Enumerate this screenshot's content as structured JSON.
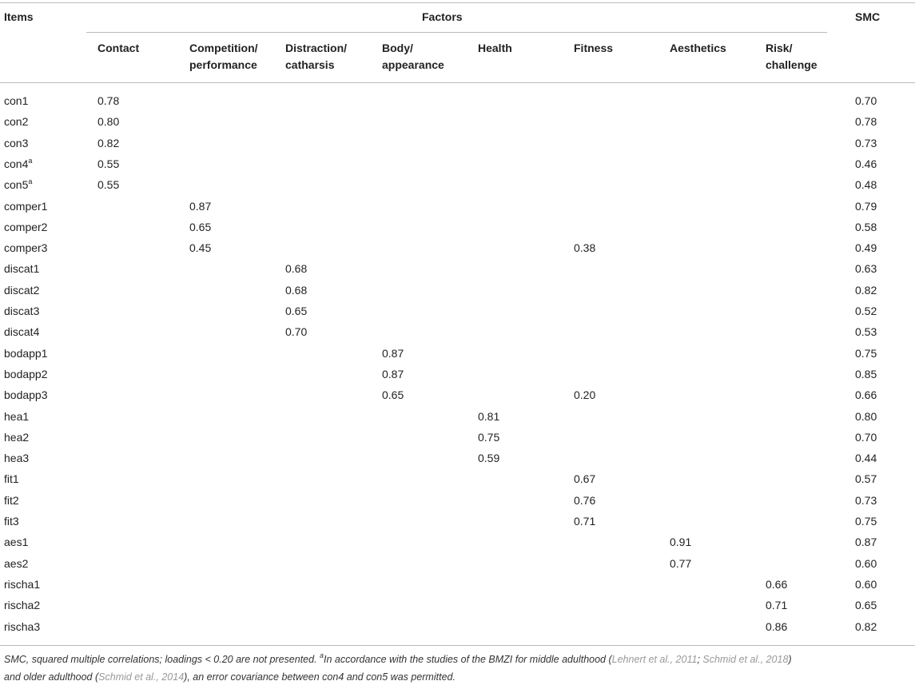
{
  "header": {
    "items": "Items",
    "factors": "Factors",
    "smc": "SMC",
    "columns": [
      [
        "Contact"
      ],
      [
        "Competition/",
        "performance"
      ],
      [
        "Distraction/",
        "catharsis"
      ],
      [
        "Body/",
        "appearance"
      ],
      [
        "Health"
      ],
      [
        "Fitness"
      ],
      [
        "Aesthetics"
      ],
      [
        "Risk/",
        "challenge"
      ]
    ]
  },
  "table": {
    "rows": [
      {
        "item": "con1",
        "cells": [
          "0.78",
          null,
          null,
          null,
          null,
          null,
          null,
          null,
          "0.70"
        ]
      },
      {
        "item": "con2",
        "cells": [
          "0.80",
          null,
          null,
          null,
          null,
          null,
          null,
          null,
          "0.78"
        ]
      },
      {
        "item": "con3",
        "cells": [
          "0.82",
          null,
          null,
          null,
          null,
          null,
          null,
          null,
          "0.73"
        ]
      },
      {
        "item": "con4",
        "sup": "a",
        "cells": [
          "0.55",
          null,
          null,
          null,
          null,
          null,
          null,
          null,
          "0.46"
        ]
      },
      {
        "item": "con5",
        "sup": "a",
        "cells": [
          "0.55",
          null,
          null,
          null,
          null,
          null,
          null,
          null,
          "0.48"
        ]
      },
      {
        "item": "comper1",
        "cells": [
          null,
          "0.87",
          null,
          null,
          null,
          null,
          null,
          null,
          "0.79"
        ]
      },
      {
        "item": "comper2",
        "cells": [
          null,
          "0.65",
          null,
          null,
          null,
          null,
          null,
          null,
          "0.58"
        ]
      },
      {
        "item": "comper3",
        "cells": [
          null,
          "0.45",
          null,
          null,
          null,
          "0.38",
          null,
          null,
          "0.49"
        ]
      },
      {
        "item": "discat1",
        "cells": [
          null,
          null,
          "0.68",
          null,
          null,
          null,
          null,
          null,
          "0.63"
        ]
      },
      {
        "item": "discat2",
        "cells": [
          null,
          null,
          "0.68",
          null,
          null,
          null,
          null,
          null,
          "0.82"
        ]
      },
      {
        "item": "discat3",
        "cells": [
          null,
          null,
          "0.65",
          null,
          null,
          null,
          null,
          null,
          "0.52"
        ]
      },
      {
        "item": "discat4",
        "cells": [
          null,
          null,
          "0.70",
          null,
          null,
          null,
          null,
          null,
          "0.53"
        ]
      },
      {
        "item": "bodapp1",
        "cells": [
          null,
          null,
          null,
          "0.87",
          null,
          null,
          null,
          null,
          "0.75"
        ]
      },
      {
        "item": "bodapp2",
        "cells": [
          null,
          null,
          null,
          "0.87",
          null,
          null,
          null,
          null,
          "0.85"
        ]
      },
      {
        "item": "bodapp3",
        "cells": [
          null,
          null,
          null,
          "0.65",
          null,
          "0.20",
          null,
          null,
          "0.66"
        ]
      },
      {
        "item": "hea1",
        "cells": [
          null,
          null,
          null,
          null,
          "0.81",
          null,
          null,
          null,
          "0.80"
        ]
      },
      {
        "item": "hea2",
        "cells": [
          null,
          null,
          null,
          null,
          "0.75",
          null,
          null,
          null,
          "0.70"
        ]
      },
      {
        "item": "hea3",
        "cells": [
          null,
          null,
          null,
          null,
          "0.59",
          null,
          null,
          null,
          "0.44"
        ]
      },
      {
        "item": "fit1",
        "cells": [
          null,
          null,
          null,
          null,
          null,
          "0.67",
          null,
          null,
          "0.57"
        ]
      },
      {
        "item": "fit2",
        "cells": [
          null,
          null,
          null,
          null,
          null,
          "0.76",
          null,
          null,
          "0.73"
        ]
      },
      {
        "item": "fit3",
        "cells": [
          null,
          null,
          null,
          null,
          null,
          "0.71",
          null,
          null,
          "0.75"
        ]
      },
      {
        "item": "aes1",
        "cells": [
          null,
          null,
          null,
          null,
          null,
          null,
          "0.91",
          null,
          "0.87"
        ]
      },
      {
        "item": "aes2",
        "cells": [
          null,
          null,
          null,
          null,
          null,
          null,
          "0.77",
          null,
          "0.60"
        ]
      },
      {
        "item": "rischa1",
        "cells": [
          null,
          null,
          null,
          null,
          null,
          null,
          null,
          "0.66",
          "0.60"
        ]
      },
      {
        "item": "rischa2",
        "cells": [
          null,
          null,
          null,
          null,
          null,
          null,
          null,
          "0.71",
          "0.65"
        ]
      },
      {
        "item": "rischa3",
        "cells": [
          null,
          null,
          null,
          null,
          null,
          null,
          null,
          "0.86",
          "0.82"
        ]
      }
    ]
  },
  "footnote": [
    "SMC, squared multiple correlations; loadings < 0.20 are not presented. ",
    "a",
    "In accordance with the studies of the BMZI for middle adulthood (",
    "Lehnert et al., 2011",
    "; ",
    "Schmid et al., 2018",
    ")",
    "and older adulthood (",
    "Schmid et al., 2014",
    "), an error covariance between con4 and con5 was permitted."
  ]
}
